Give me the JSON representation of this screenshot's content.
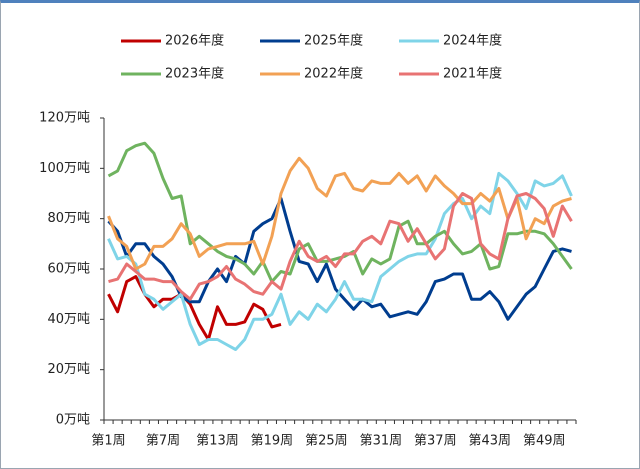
{
  "chart_data": {
    "type": "line",
    "categories": [
      "第1周",
      null,
      null,
      null,
      null,
      null,
      "第7周",
      null,
      null,
      null,
      null,
      null,
      "第13周",
      null,
      null,
      null,
      null,
      null,
      "第19周",
      null,
      null,
      null,
      null,
      null,
      "第25周",
      null,
      null,
      null,
      null,
      null,
      "第31周",
      null,
      null,
      null,
      null,
      null,
      "第37周",
      null,
      null,
      null,
      null,
      null,
      "第43周",
      null,
      null,
      null,
      null,
      null,
      "第49周",
      null,
      null,
      null
    ],
    "ylim": [
      0,
      120
    ],
    "yticks": [
      {
        "value": 0,
        "label": "0万吨"
      },
      {
        "value": 20,
        "label": "20万吨"
      },
      {
        "value": 40,
        "label": "40万吨"
      },
      {
        "value": 60,
        "label": "60万吨"
      },
      {
        "value": 80,
        "label": "80万吨"
      },
      {
        "value": 100,
        "label": "100万吨"
      },
      {
        "value": 120,
        "label": "120万吨"
      }
    ],
    "grid": false,
    "series": [
      {
        "name": "2026年度",
        "color": "#c00000",
        "values": [
          50,
          43,
          55,
          57,
          50,
          45,
          48,
          48,
          50,
          46,
          38,
          32,
          45,
          38,
          38,
          39,
          46,
          44,
          37,
          38,
          null,
          null,
          null,
          null,
          null,
          null,
          null,
          null,
          null,
          null,
          null,
          null,
          null,
          null,
          null,
          null,
          null,
          null,
          null,
          null,
          null,
          null,
          null,
          null,
          null,
          null,
          null,
          null,
          null,
          null,
          null,
          null
        ]
      },
      {
        "name": "2025年度",
        "color": "#003d8f",
        "values": [
          79,
          75,
          65,
          70,
          70,
          65,
          62,
          57,
          49,
          47,
          47,
          55,
          60,
          55,
          65,
          62,
          75,
          78,
          80,
          88,
          75,
          63,
          62,
          55,
          62,
          52,
          48,
          44,
          48,
          45,
          46,
          41,
          42,
          43,
          42,
          47,
          55,
          56,
          58,
          58,
          48,
          48,
          51,
          47,
          40,
          45,
          50,
          53,
          60,
          67,
          68,
          67
        ]
      },
      {
        "name": "2024年度",
        "color": "#7fd4e8",
        "values": [
          72,
          64,
          65,
          62,
          50,
          48,
          44,
          47,
          50,
          38,
          30,
          32,
          32,
          30,
          28,
          32,
          40,
          40,
          42,
          50,
          38,
          43,
          40,
          46,
          43,
          48,
          55,
          48,
          48,
          47,
          57,
          60,
          63,
          65,
          66,
          66,
          72,
          82,
          86,
          88,
          80,
          85,
          82,
          98,
          95,
          90,
          84,
          95,
          93,
          94,
          97,
          89
        ]
      },
      {
        "name": "2023年度",
        "color": "#6fb35f",
        "values": [
          97,
          99,
          107,
          109,
          110,
          106,
          96,
          88,
          89,
          70,
          73,
          70,
          67,
          65,
          64,
          62,
          58,
          63,
          55,
          59,
          58,
          68,
          70,
          63,
          63,
          64,
          65,
          67,
          58,
          64,
          62,
          64,
          77,
          79,
          70,
          70,
          73,
          75,
          70,
          66,
          67,
          70,
          60,
          61,
          74,
          74,
          75,
          75,
          74,
          70,
          65,
          60
        ]
      },
      {
        "name": "2022年度",
        "color": "#f2a154",
        "values": [
          81,
          72,
          69,
          60,
          62,
          69,
          69,
          72,
          78,
          74,
          65,
          68,
          69,
          70,
          70,
          70,
          71,
          62,
          73,
          90,
          99,
          104,
          100,
          92,
          89,
          97,
          98,
          92,
          91,
          95,
          94,
          94,
          98,
          94,
          97,
          91,
          97,
          93,
          90,
          86,
          86,
          90,
          87,
          92,
          80,
          88,
          72,
          80,
          78,
          85,
          87,
          88
        ]
      },
      {
        "name": "2021年度",
        "color": "#e87373",
        "values": [
          55,
          56,
          62,
          59,
          56,
          56,
          55,
          55,
          51,
          48,
          54,
          55,
          57,
          61,
          56,
          54,
          51,
          50,
          55,
          52,
          63,
          71,
          65,
          63,
          65,
          61,
          66,
          66,
          71,
          73,
          70,
          79,
          78,
          71,
          76,
          70,
          64,
          68,
          85,
          90,
          88,
          70,
          66,
          64,
          80,
          89,
          90,
          88,
          84,
          73,
          85,
          79
        ]
      }
    ]
  }
}
